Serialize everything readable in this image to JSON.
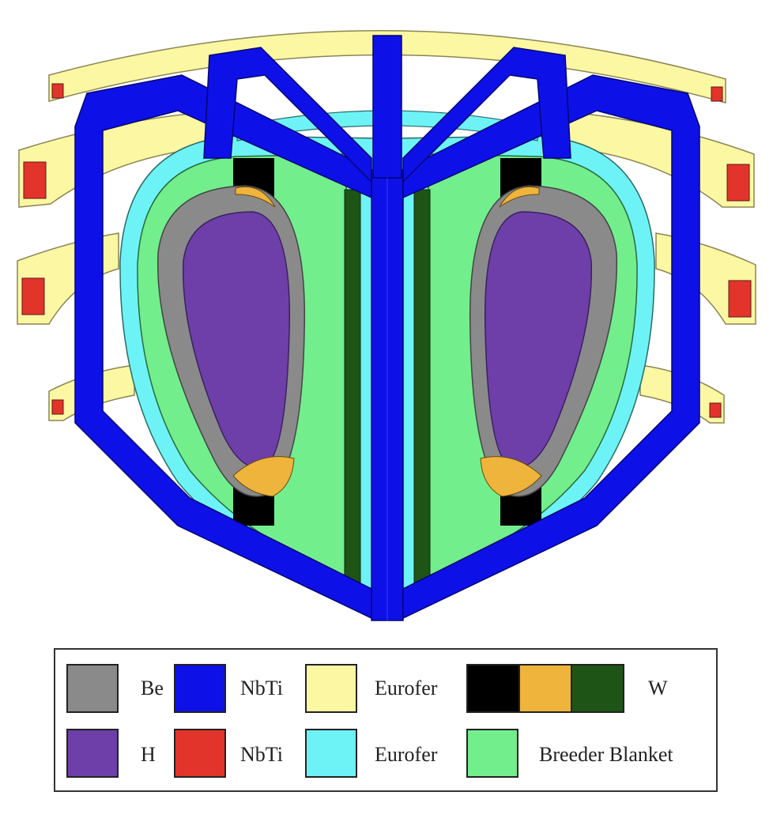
{
  "colors": {
    "be": "#8a8a8a",
    "h": "#6e3fa8",
    "nbti_blue": "#0d11e8",
    "nbti_red": "#e2342b",
    "eurofer_yellow": "#fcf7a2",
    "eurofer_cyan": "#6df3f6",
    "w_black": "#000000",
    "w_orange": "#efb43c",
    "w_green": "#1e5416",
    "breeder": "#72ee8d"
  },
  "legend": {
    "be": "Be",
    "h": "H",
    "nbti_1": "NbTi",
    "nbti_2": "NbTi",
    "eurofer_1": "Eurofer",
    "eurofer_2": "Eurofer",
    "w": "W",
    "breeder": "Breeder Blanket"
  }
}
